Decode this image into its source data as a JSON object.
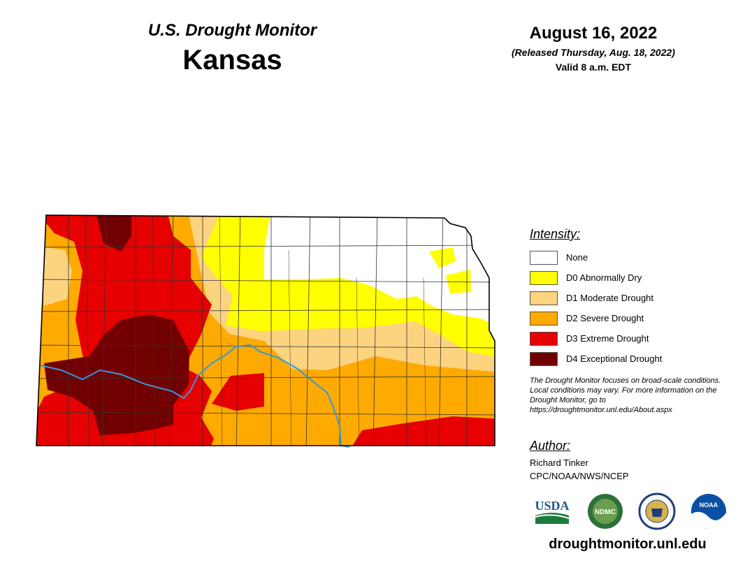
{
  "header": {
    "subtitle": "U.S. Drought Monitor",
    "title": "Kansas",
    "date": "August 16, 2022",
    "released": "(Released Thursday, Aug. 18, 2022)",
    "valid": "Valid 8 a.m. EDT"
  },
  "legend": {
    "title": "Intensity:",
    "items": [
      {
        "label": "None",
        "color": "#ffffff"
      },
      {
        "label": "D0 Abnormally Dry",
        "color": "#ffff00"
      },
      {
        "label": "D1 Moderate Drought",
        "color": "#fcd37f"
      },
      {
        "label": "D2 Severe Drought",
        "color": "#ffaa00"
      },
      {
        "label": "D3 Extreme Drought",
        "color": "#e60000"
      },
      {
        "label": "D4 Exceptional Drought",
        "color": "#730000"
      }
    ]
  },
  "note": "The Drought Monitor focuses on broad-scale conditions. Local conditions may vary. For more information on the Drought Monitor, go to https://droughtmonitor.unl.edu/About.aspx",
  "author": {
    "title": "Author:",
    "name": "Richard Tinker",
    "org": "CPC/NOAA/NWS/NCEP"
  },
  "logos": [
    {
      "name": "usda-logo",
      "text": "USDA",
      "color": "#1a5b8e"
    },
    {
      "name": "ndmc-logo",
      "text": "NDMC",
      "color": "#2e6f3a"
    },
    {
      "name": "commerce-seal",
      "text": "",
      "color": "#1d3e7a"
    },
    {
      "name": "noaa-logo",
      "text": "NOAA",
      "color": "#0a4fa3"
    }
  ],
  "url": "droughtmonitor.unl.edu",
  "colors": {
    "river": "#3399dd",
    "county_lines": "#333333",
    "none": "#ffffff",
    "d0": "#ffff00",
    "d1": "#fcd37f",
    "d2": "#ffaa00",
    "d3": "#e60000",
    "d4": "#730000"
  }
}
